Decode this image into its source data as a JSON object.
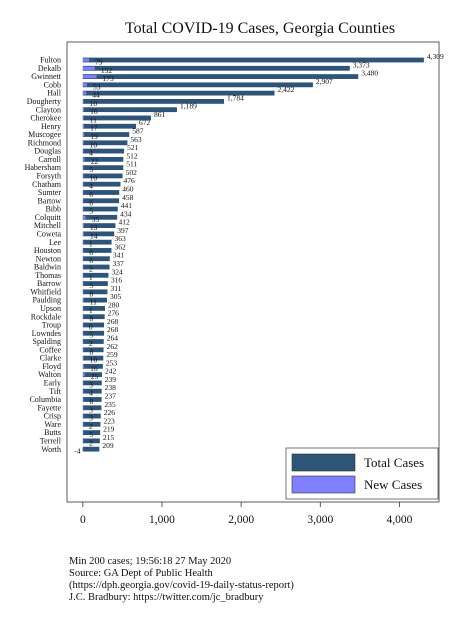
{
  "chart_data": {
    "type": "bar",
    "title": "Total COVID-19 Cases, Georgia Counties",
    "categories": [
      "Fulton",
      "Dekalb",
      "Gwinnett",
      "Cobb",
      "Hall",
      "Dougherty",
      "Clayton",
      "Cherokee",
      "Henry",
      "Muscogee",
      "Richmond",
      "Douglas",
      "Carroll",
      "Habersham",
      "Forsyth",
      "Chatham",
      "Sumter",
      "Bartow",
      "Bibb",
      "Colquitt",
      "Mitchell",
      "Coweta",
      "Lee",
      "Houston",
      "Newton",
      "Baldwin",
      "Thomas",
      "Barrow",
      "Whitfield",
      "Paulding",
      "Upson",
      "Rockdale",
      "Troup",
      "Lowndes",
      "Spalding",
      "Coffee",
      "Clarke",
      "Floyd",
      "Walton",
      "Early",
      "Tift",
      "Columbia",
      "Fayette",
      "Crisp",
      "Ware",
      "Butts",
      "Terrell",
      "Worth"
    ],
    "series": [
      {
        "name": "Total Cases",
        "color": "#2e5478",
        "values": [
          4309,
          3373,
          3480,
          2907,
          2422,
          1784,
          1189,
          861,
          672,
          587,
          563,
          521,
          512,
          511,
          502,
          476,
          460,
          458,
          441,
          434,
          412,
          397,
          363,
          362,
          341,
          337,
          324,
          316,
          311,
          305,
          280,
          276,
          268,
          268,
          264,
          262,
          259,
          253,
          242,
          239,
          238,
          237,
          235,
          226,
          223,
          219,
          215,
          209
        ]
      },
      {
        "name": "New Cases",
        "color": "#8080ff",
        "values": [
          79,
          152,
          173,
          53,
          44,
          10,
          16,
          11,
          17,
          19,
          10,
          4,
          22,
          5,
          10,
          4,
          6,
          6,
          5,
          35,
          13,
          14,
          1,
          6,
          6,
          2,
          1,
          5,
          8,
          11,
          1,
          8,
          0,
          5,
          2,
          8,
          10,
          16,
          25,
          3,
          4,
          8,
          3,
          3,
          2,
          5,
          2,
          -4
        ]
      }
    ],
    "value_labels": {
      "total": [
        "4,309",
        "3,373",
        "3,480",
        "2,907",
        "2,422",
        "1,784",
        "1,189",
        "861",
        "672",
        "587",
        "563",
        "521",
        "512",
        "511",
        "502",
        "476",
        "460",
        "458",
        "441",
        "434",
        "412",
        "397",
        "363",
        "362",
        "341",
        "337",
        "324",
        "316",
        "311",
        "305",
        "280",
        "276",
        "268",
        "268",
        "264",
        "262",
        "259",
        "253",
        "242",
        "239",
        "238",
        "237",
        "235",
        "226",
        "223",
        "219",
        "215",
        "209"
      ],
      "new": [
        "79",
        "152",
        "173",
        "53",
        "44",
        "10",
        "16",
        "11",
        "17",
        "19",
        "10",
        "4",
        "22",
        "5",
        "10",
        "4",
        "6",
        "6",
        "5",
        "35",
        "13",
        "14",
        "1",
        "6",
        "6",
        "2",
        "1",
        "5",
        "8",
        "11",
        "1",
        "8",
        "0",
        "5",
        "2",
        "8",
        "10",
        "16",
        "25",
        "3",
        "4",
        "8",
        "3",
        "3",
        "2",
        "5",
        "2",
        "-4"
      ]
    },
    "xticks": [
      0,
      1000,
      2000,
      3000,
      4000
    ],
    "xtick_labels": [
      "0",
      "1,000",
      "2,000",
      "3,000",
      "4,000"
    ],
    "xlim": [
      -200,
      4500
    ],
    "xlabel": "",
    "ylabel": "",
    "grid": false,
    "legend_position": "lower-right"
  },
  "notes": {
    "line1": "Min 200 cases; 19:56:18  27 May 2020",
    "line2": "Source: GA Dept of Public Health",
    "line3": "(https://dph.georgia.gov/covid-19-daily-status-report)",
    "line4": "J.C. Bradbury: https://twitter.com/jc_bradbury"
  }
}
